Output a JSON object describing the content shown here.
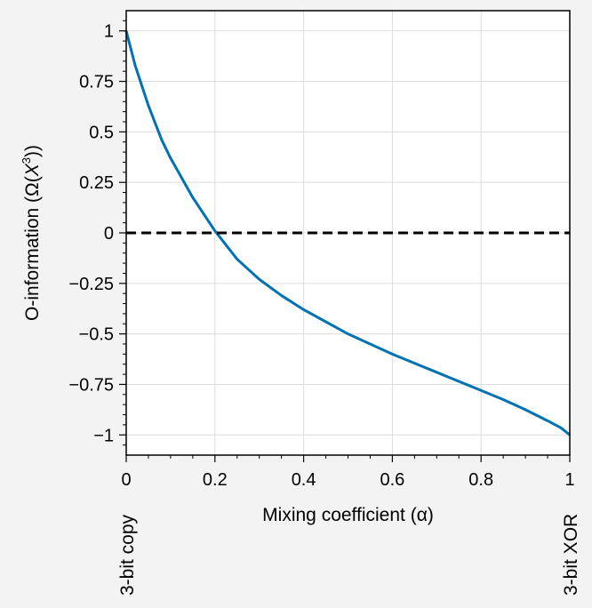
{
  "chart_data": {
    "type": "line",
    "xlabel": "Mixing coefficient (α)",
    "ylabel_parts": {
      "prefix": "O-information (Ω(",
      "var": "X",
      "sup": "3",
      "suffix": "))"
    },
    "xlim": [
      0,
      1
    ],
    "ylim": [
      -1.1,
      1.1
    ],
    "xticks": [
      0,
      0.2,
      0.4,
      0.6,
      0.8,
      1
    ],
    "xtick_labels": [
      "0",
      "0.2",
      "0.4",
      "0.6",
      "0.8",
      "1"
    ],
    "yticks": [
      1,
      0.75,
      0.5,
      0.25,
      0,
      -0.25,
      -0.5,
      -0.75,
      -1
    ],
    "ytick_labels": [
      "1",
      "0.75",
      "0.5",
      "0.25",
      "0",
      "−0.25",
      "−0.5",
      "−0.75",
      "−1"
    ],
    "grid": true,
    "annotations": {
      "left": "3-bit copy",
      "right": "3-bit XOR"
    },
    "series": [
      {
        "color": "#0072b2",
        "style": "solid",
        "x": [
          0,
          0.02,
          0.05,
          0.08,
          0.1,
          0.15,
          0.2,
          0.25,
          0.3,
          0.35,
          0.4,
          0.45,
          0.5,
          0.55,
          0.6,
          0.65,
          0.7,
          0.75,
          0.8,
          0.85,
          0.9,
          0.95,
          0.98,
          1.0
        ],
        "y": [
          1.0,
          0.83,
          0.63,
          0.46,
          0.37,
          0.175,
          0.01,
          -0.13,
          -0.23,
          -0.31,
          -0.38,
          -0.44,
          -0.5,
          -0.55,
          -0.6,
          -0.645,
          -0.69,
          -0.735,
          -0.78,
          -0.825,
          -0.875,
          -0.93,
          -0.965,
          -1.0
        ]
      },
      {
        "color": "#000000",
        "style": "dashed",
        "x": [
          0,
          1
        ],
        "y": [
          0,
          0
        ]
      }
    ]
  }
}
